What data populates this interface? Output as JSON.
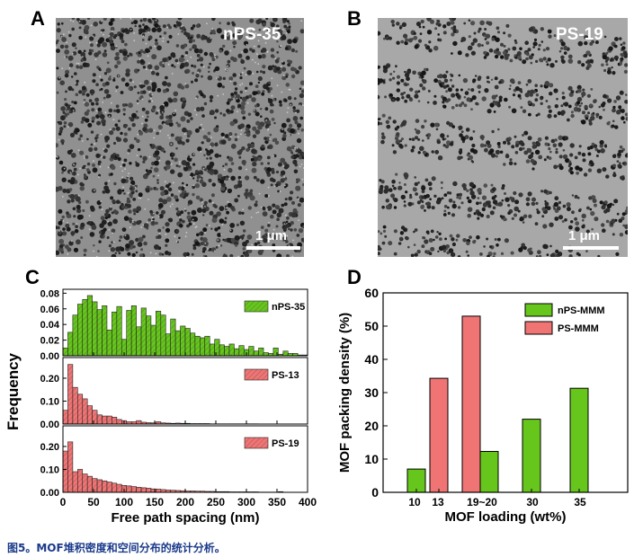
{
  "panels": {
    "a": {
      "letter": "A",
      "label": "nPS-35",
      "scale": "1 μm"
    },
    "b": {
      "letter": "B",
      "label": "PS-19",
      "scale": "1 μm"
    },
    "c": {
      "letter": "C"
    },
    "d": {
      "letter": "D"
    }
  },
  "caption": "图5。MOF堆积密度和空间分布的统计分析。",
  "colors": {
    "green": "#66c61c",
    "red": "#f07474",
    "axis": "#000000"
  },
  "chart_data": [
    {
      "type": "bar",
      "panel": "C",
      "xlabel": "Free path spacing (nm)",
      "ylabel": "Frequency",
      "xlim": [
        0,
        400
      ],
      "xticks": [
        0,
        50,
        100,
        150,
        200,
        250,
        300,
        350,
        400
      ],
      "bin_width": 8,
      "subplots": [
        {
          "name": "nPS-35",
          "ylim": [
            0,
            0.085
          ],
          "yticks": [
            "0.00",
            "0.02",
            "0.04",
            "0.06",
            "0.08"
          ],
          "values": [
            0.01,
            0.03,
            0.052,
            0.066,
            0.072,
            0.077,
            0.069,
            0.059,
            0.064,
            0.033,
            0.056,
            0.063,
            0.021,
            0.058,
            0.064,
            0.037,
            0.061,
            0.051,
            0.039,
            0.057,
            0.052,
            0.028,
            0.047,
            0.032,
            0.038,
            0.035,
            0.029,
            0.025,
            0.023,
            0.025,
            0.015,
            0.021,
            0.014,
            0.012,
            0.015,
            0.009,
            0.013,
            0.008,
            0.012,
            0.006,
            0.01,
            0.004,
            0.003,
            0.01,
            0.002,
            0.006,
            0.003,
            0.003,
            0.001,
            0.001
          ]
        },
        {
          "name": "PS-13",
          "ylim": [
            0,
            0.29
          ],
          "yticks": [
            "0.00",
            "0.10",
            "0.20"
          ],
          "values": [
            0.06,
            0.26,
            0.16,
            0.13,
            0.11,
            0.08,
            0.06,
            0.04,
            0.035,
            0.035,
            0.03,
            0.02,
            0.015,
            0.01,
            0.01,
            0.015,
            0.008,
            0.006,
            0.005,
            0.01,
            0.005,
            0.004,
            0.003,
            0.004,
            0.003,
            0.003,
            0.002,
            0.002,
            0.002,
            0.002,
            0.001,
            0.001,
            0.001,
            0.001,
            0.001,
            0.001,
            0.001,
            0.001,
            0.001,
            0.001
          ]
        },
        {
          "name": "PS-19",
          "ylim": [
            0,
            0.29
          ],
          "yticks": [
            "0.00",
            "0.10",
            "0.20"
          ],
          "values": [
            0.18,
            0.22,
            0.09,
            0.1,
            0.08,
            0.07,
            0.06,
            0.055,
            0.05,
            0.045,
            0.04,
            0.035,
            0.03,
            0.028,
            0.025,
            0.022,
            0.02,
            0.018,
            0.015,
            0.014,
            0.012,
            0.01,
            0.009,
            0.008,
            0.007,
            0.006,
            0.006,
            0.005,
            0.005,
            0.004,
            0.004,
            0.003,
            0.003,
            0.003,
            0.002,
            0.002,
            0.002,
            0.002,
            0.002,
            0.002,
            0.001,
            0.001,
            0.001,
            0.001,
            0.003
          ]
        }
      ]
    },
    {
      "type": "bar",
      "panel": "D",
      "xlabel": "MOF loading (wt%)",
      "ylabel": "MOF packing density (%)",
      "ylim": [
        0,
        60
      ],
      "yticks": [
        0,
        10,
        20,
        30,
        40,
        50,
        60
      ],
      "xtick_labels": [
        "10",
        "13",
        "19~20",
        "30",
        "35"
      ],
      "legend": {
        "position": "top-right"
      },
      "series": [
        {
          "name": "nPS-MMM",
          "color": "green",
          "points": [
            {
              "x": "10",
              "value": 7
            },
            {
              "x": "19~20",
              "value": 12.3
            },
            {
              "x": "30",
              "value": 22
            },
            {
              "x": "35",
              "value": 31.3
            }
          ]
        },
        {
          "name": "PS-MMM",
          "color": "red",
          "points": [
            {
              "x": "13",
              "value": 34.3
            },
            {
              "x": "19~20",
              "value": 53
            }
          ]
        }
      ]
    }
  ]
}
